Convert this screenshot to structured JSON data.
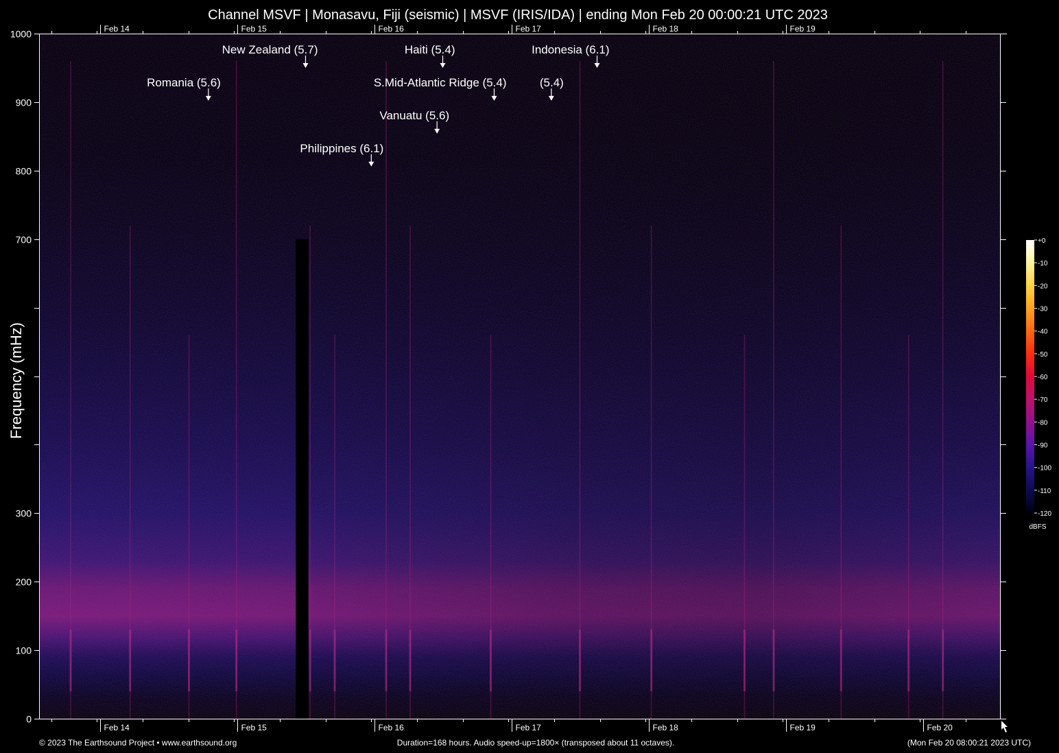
{
  "chart_data": {
    "type": "heatmap",
    "title": "Channel MSVF | Monasavu, Fiji (seismic) | MSVF (IRIS/IDA) | ending Mon Feb 20 00:00:21 UTC 2023",
    "ylabel": "Frequency (mHz)",
    "xlabel": "",
    "ylim": [
      0,
      1000
    ],
    "y_ticks": [
      {
        "value": 0,
        "label": "0"
      },
      {
        "value": 100,
        "label": "100"
      },
      {
        "value": 200,
        "label": "200"
      },
      {
        "value": 300,
        "label": "300"
      },
      {
        "value": 400,
        "label": ""
      },
      {
        "value": 500,
        "label": ""
      },
      {
        "value": 600,
        "label": ""
      },
      {
        "value": 700,
        "label": "700"
      },
      {
        "value": 800,
        "label": "800"
      },
      {
        "value": 900,
        "label": "900"
      },
      {
        "value": 1000,
        "label": "1000"
      }
    ],
    "x_range_hours": [
      0,
      168
    ],
    "x_ticks": [
      {
        "hour": 10.5,
        "label": "Feb 14"
      },
      {
        "hour": 34.5,
        "label": "Feb 15"
      },
      {
        "hour": 58.5,
        "label": "Feb 16"
      },
      {
        "hour": 82.5,
        "label": "Feb 17"
      },
      {
        "hour": 106.5,
        "label": "Feb 18"
      },
      {
        "hour": 130.5,
        "label": "Feb 19"
      },
      {
        "hour": 154.5,
        "label": "Feb 20"
      }
    ],
    "x_bottom_extra_tick": {
      "hour": 154.5,
      "label": "Feb 20"
    },
    "events": [
      {
        "label": "New Zealand (5.7)",
        "hour": 46.5,
        "freq": 950
      },
      {
        "label": "Romania (5.6)",
        "hour": 29.5,
        "freq": 902
      },
      {
        "label": "Haiti (5.4)",
        "hour": 70.5,
        "freq": 950
      },
      {
        "label": "S.Mid-Atlantic Ridge (5.4)",
        "hour": 79.5,
        "freq": 902
      },
      {
        "label": "Indonesia (6.1)",
        "hour": 97.5,
        "freq": 950
      },
      {
        "label": "(5.4)",
        "hour": 89.5,
        "freq": 902
      },
      {
        "label": "Vanuatu (5.6)",
        "hour": 69.5,
        "freq": 854
      },
      {
        "label": "Philippines (6.1)",
        "hour": 58,
        "freq": 806
      }
    ],
    "data_gap_hours": [
      44.8,
      47.0
    ],
    "colorbar": {
      "unit": "dBFS",
      "ticks": [
        "+0",
        "-10",
        "-20",
        "-30",
        "-40",
        "-50",
        "-60",
        "-70",
        "-80",
        "-90",
        "-100",
        "-110",
        "-120"
      ],
      "colors": [
        "#ffffff",
        "#fff3a0",
        "#ffd23c",
        "#ffa21e",
        "#ff6a12",
        "#ff2a10",
        "#e00a3a",
        "#c0106a",
        "#901090",
        "#5a14a8",
        "#28148c",
        "#0c0a50",
        "#000010"
      ]
    }
  },
  "footer": {
    "left": "© 2023 The Earthsound Project • www.earthsound.org",
    "center": "Duration=168 hours. Audio speed-up=1800× (transposed about 11 octaves).",
    "right": "(Mon Feb 20 08:00:21 2023 UTC)"
  }
}
